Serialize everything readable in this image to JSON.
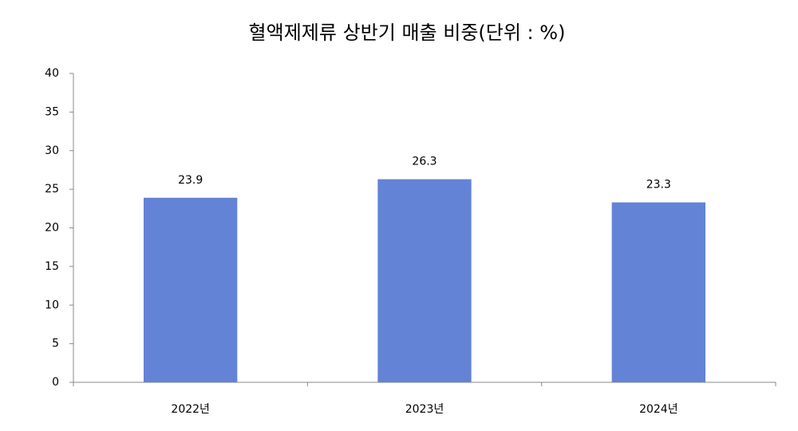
{
  "chart_data": {
    "type": "bar",
    "title": "혈액제제류 상반기 매출 비중(단위 : %)",
    "categories": [
      "2022년",
      "2023년",
      "2024년"
    ],
    "values": [
      23.9,
      26.3,
      23.3
    ],
    "color": "#6383d6",
    "ylim": [
      0,
      40
    ],
    "yticks": [
      0,
      5,
      10,
      15,
      20,
      25,
      30,
      35,
      40
    ],
    "grid": false,
    "data_labels": true
  }
}
